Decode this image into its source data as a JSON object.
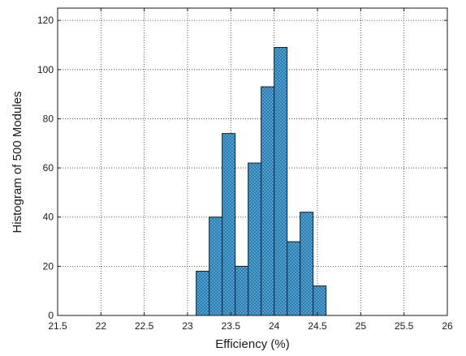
{
  "chart_data": {
    "type": "bar",
    "xlabel": "Efficiency (%)",
    "ylabel": "Histogram of 500 Modules",
    "xlim": [
      21.5,
      26
    ],
    "ylim": [
      0,
      125
    ],
    "x_ticks": [
      21.5,
      22,
      22.5,
      23,
      23.5,
      24,
      24.5,
      25,
      25.5,
      26
    ],
    "y_ticks": [
      0,
      20,
      40,
      60,
      80,
      100,
      120
    ],
    "grid": true,
    "bin_width": 0.15,
    "bins": [
      {
        "start": 23.1,
        "count": 18
      },
      {
        "start": 23.25,
        "count": 40
      },
      {
        "start": 23.4,
        "count": 74
      },
      {
        "start": 23.55,
        "count": 20
      },
      {
        "start": 23.7,
        "count": 62
      },
      {
        "start": 23.85,
        "count": 93
      },
      {
        "start": 24.0,
        "count": 109
      },
      {
        "start": 24.15,
        "count": 30
      },
      {
        "start": 24.3,
        "count": 42
      },
      {
        "start": 24.45,
        "count": 12
      }
    ],
    "bar_color": "#4fa8dc",
    "bar_edge_color": "#1a1a1a"
  }
}
